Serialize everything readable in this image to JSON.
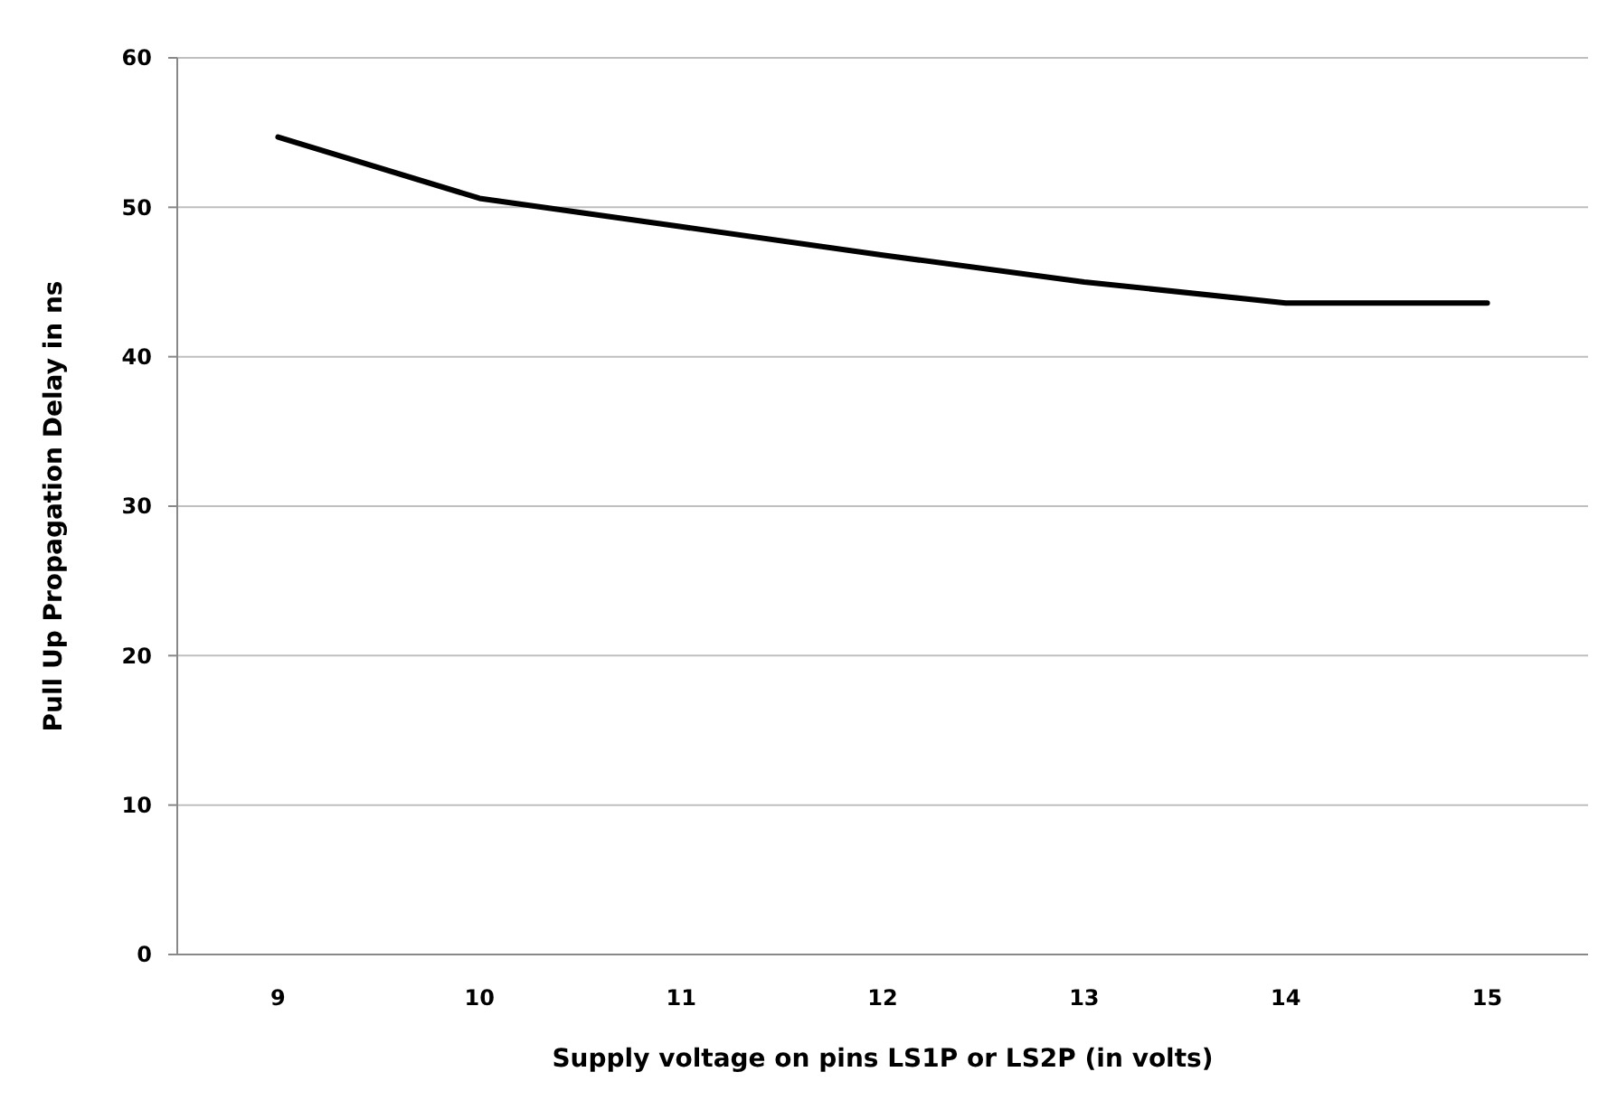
{
  "chart_data": {
    "type": "line",
    "xlabel": "Supply voltage on pins LS1P or LS2P (in volts)",
    "ylabel": "Pull Up Propagation Delay in ns",
    "categories": [
      "9",
      "10",
      "11",
      "12",
      "13",
      "14",
      "15"
    ],
    "series": [
      {
        "color": "#000000",
        "values": [
          54.7,
          50.6,
          48.7,
          46.8,
          45.0,
          43.6,
          43.6
        ]
      }
    ],
    "ylim": [
      0,
      60
    ],
    "yticks": [
      0,
      10,
      20,
      30,
      40,
      50,
      60
    ],
    "grid": "y",
    "marker": "none",
    "line_style": "solid"
  }
}
